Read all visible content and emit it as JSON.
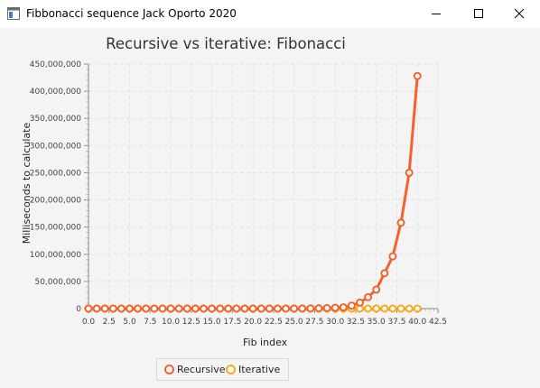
{
  "window": {
    "title": "Fibbonacci sequence Jack Oporto 2020",
    "controls": {
      "minimize": "minimize",
      "maximize": "maximize",
      "close": "close"
    }
  },
  "colors": {
    "recursive": "#f3622d",
    "iterative": "#fba71b",
    "grid": "#e2e2e2"
  },
  "chart_data": {
    "type": "line",
    "title": "Recursive vs iterative: Fibonacci",
    "xlabel": "Fib index",
    "ylabel": "Milliseconds to calculate",
    "xlim": [
      0,
      42.5
    ],
    "ylim": [
      0,
      450000000
    ],
    "x_ticks": [
      "0.0",
      "2.5",
      "5.0",
      "7.5",
      "10.0",
      "12.5",
      "15.0",
      "17.5",
      "20.0",
      "22.5",
      "25.0",
      "27.5",
      "30.0",
      "32.5",
      "35.0",
      "37.5",
      "40.0",
      "42.5"
    ],
    "y_ticks": [
      "0",
      "50,000,000",
      "100,000,000",
      "150,000,000",
      "200,000,000",
      "250,000,000",
      "300,000,000",
      "350,000,000",
      "400,000,000",
      "450,000,000"
    ],
    "grid": true,
    "legend_position": "bottom",
    "series": [
      {
        "name": "Recursive",
        "x": [
          0,
          1,
          2,
          3,
          4,
          5,
          6,
          7,
          8,
          9,
          10,
          11,
          12,
          13,
          14,
          15,
          16,
          17,
          18,
          19,
          20,
          21,
          22,
          23,
          24,
          25,
          26,
          27,
          28,
          29,
          30,
          31,
          32,
          33,
          34,
          35,
          36,
          37,
          38,
          39,
          40
        ],
        "values": [
          0,
          0,
          0,
          0,
          0,
          0,
          0,
          0,
          0,
          0,
          0,
          0,
          0,
          0,
          0,
          0,
          0,
          0,
          0,
          0,
          0,
          0,
          0,
          0,
          0,
          100000,
          200000,
          300000,
          500000,
          900000,
          1400000,
          2300000,
          5500000,
          11000000,
          21000000,
          35000000,
          65000000,
          96000000,
          158000000,
          250000000,
          428000000
        ]
      },
      {
        "name": "Iterative",
        "x": [
          0,
          1,
          2,
          3,
          4,
          5,
          6,
          7,
          8,
          9,
          10,
          11,
          12,
          13,
          14,
          15,
          16,
          17,
          18,
          19,
          20,
          21,
          22,
          23,
          24,
          25,
          26,
          27,
          28,
          29,
          30,
          31,
          32,
          33,
          34,
          35,
          36,
          37,
          38,
          39,
          40
        ],
        "values": [
          0,
          0,
          0,
          0,
          0,
          0,
          0,
          0,
          0,
          0,
          0,
          0,
          0,
          0,
          0,
          0,
          0,
          0,
          0,
          0,
          0,
          0,
          0,
          0,
          0,
          0,
          0,
          0,
          0,
          0,
          0,
          0,
          0,
          0,
          0,
          0,
          0,
          0,
          0,
          0,
          0
        ]
      }
    ]
  }
}
